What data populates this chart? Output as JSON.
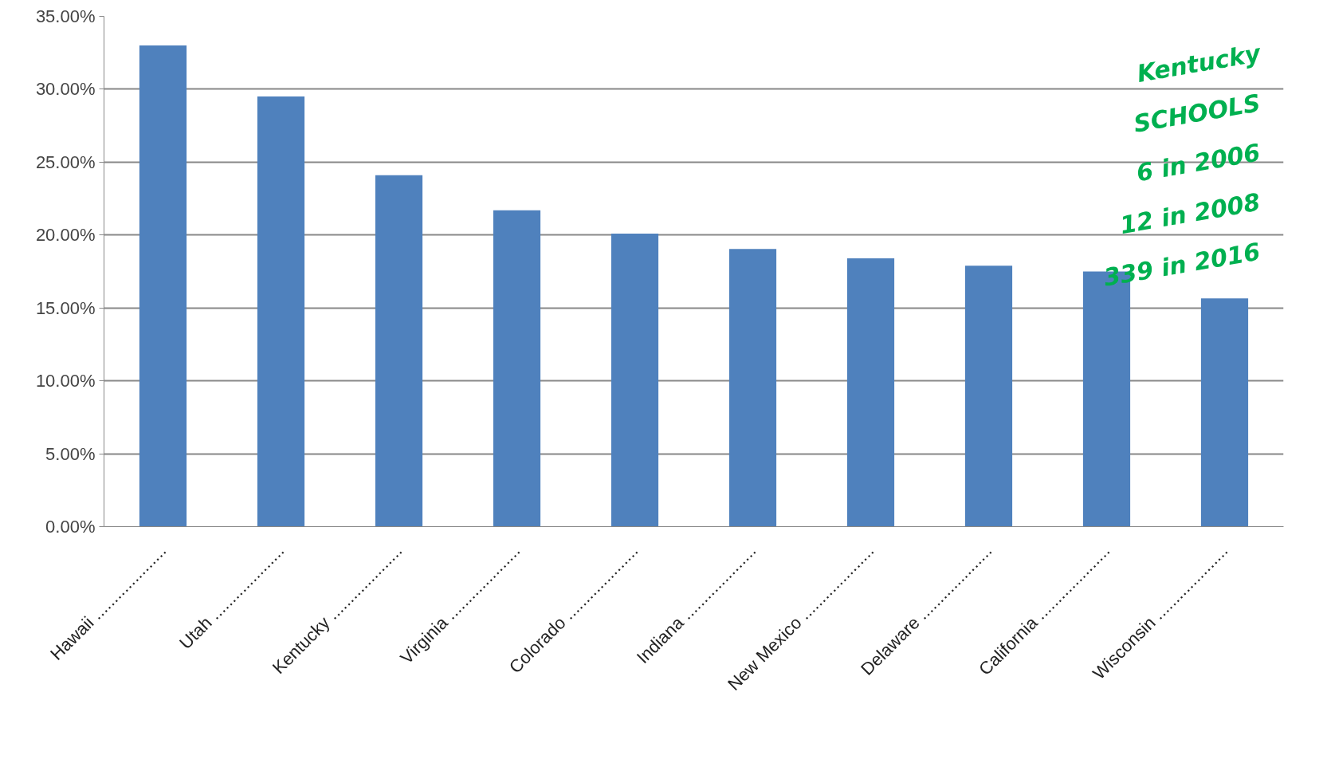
{
  "chart_data": {
    "type": "bar",
    "categories": [
      "Hawaii ....................",
      "Utah ....................",
      "Kentucky ....................",
      "Virginia ....................",
      "Colorado ....................",
      "Indiana ....................",
      "New Mexico ....................",
      "Delaware ....................",
      "California ....................",
      "Wisconsin ...................."
    ],
    "values": [
      33.0,
      29.5,
      24.1,
      21.7,
      20.1,
      19.05,
      18.4,
      17.9,
      17.5,
      15.65
    ],
    "color": "#4f81bd",
    "ylim": [
      0,
      35
    ],
    "yticks": [
      {
        "value": 0,
        "label": "0.00%"
      },
      {
        "value": 5,
        "label": "5.00%"
      },
      {
        "value": 10,
        "label": "10.00%"
      },
      {
        "value": 15,
        "label": "15.00%"
      },
      {
        "value": 20,
        "label": "20.00%"
      },
      {
        "value": 25,
        "label": "25.00%"
      },
      {
        "value": 30,
        "label": "30.00%"
      },
      {
        "value": 35,
        "label": "35.00%"
      }
    ],
    "grid": "y",
    "annotations": [
      "Kentucky",
      "SCHOOLS",
      "6 in 2006",
      "12 in 2008",
      "339 in 2016"
    ]
  }
}
